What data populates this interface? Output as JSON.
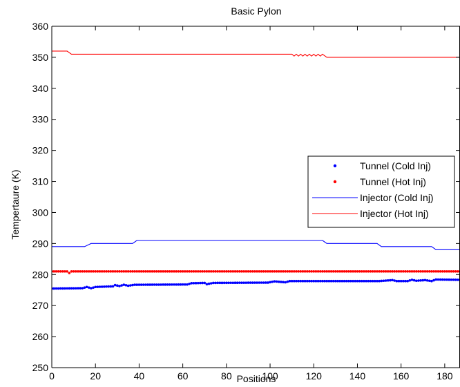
{
  "chart_data": {
    "type": "line",
    "title": "Basic Pylon",
    "xlabel": "Positions",
    "ylabel": "Tempertaure (K)",
    "xlim": [
      0,
      187
    ],
    "ylim": [
      250,
      360
    ],
    "xticks": [
      "0",
      "20",
      "40",
      "60",
      "80",
      "100",
      "120",
      "140",
      "160",
      "180"
    ],
    "yticks": [
      "250",
      "260",
      "270",
      "280",
      "290",
      "300",
      "310",
      "320",
      "330",
      "340",
      "350",
      "360"
    ],
    "grid": false,
    "legend_position": "right",
    "series": [
      {
        "name": "Tunnel (Cold Inj)",
        "style": "dots",
        "color": "#0000ff",
        "points": [
          [
            0,
            275.5
          ],
          [
            14,
            275.6
          ],
          [
            16,
            276.0
          ],
          [
            18,
            275.6
          ],
          [
            20,
            276.0
          ],
          [
            28,
            276.2
          ],
          [
            29,
            276.6
          ],
          [
            31,
            276.3
          ],
          [
            33,
            276.7
          ],
          [
            35,
            276.4
          ],
          [
            38,
            276.7
          ],
          [
            62,
            276.8
          ],
          [
            64,
            277.2
          ],
          [
            70,
            277.3
          ],
          [
            71,
            276.9
          ],
          [
            74,
            277.3
          ],
          [
            99,
            277.4
          ],
          [
            102,
            277.8
          ],
          [
            107,
            277.5
          ],
          [
            109,
            277.9
          ],
          [
            150,
            277.9
          ],
          [
            156,
            278.2
          ],
          [
            158,
            277.9
          ],
          [
            163,
            277.9
          ],
          [
            165,
            278.3
          ],
          [
            167,
            278.0
          ],
          [
            171,
            278.2
          ],
          [
            174,
            277.9
          ],
          [
            176,
            278.4
          ],
          [
            187,
            278.3
          ]
        ]
      },
      {
        "name": "Tunnel (Hot Inj)",
        "style": "dots",
        "color": "#ff0000",
        "points": [
          [
            0,
            281.0
          ],
          [
            7,
            281.0
          ],
          [
            8,
            280.5
          ],
          [
            9,
            281.0
          ],
          [
            187,
            281.0
          ]
        ]
      },
      {
        "name": "Injector (Cold Inj)",
        "style": "line",
        "color": "#0000ff",
        "points": [
          [
            0,
            289.0
          ],
          [
            15,
            289.0
          ],
          [
            18,
            290.0
          ],
          [
            37,
            290.0
          ],
          [
            39,
            291.0
          ],
          [
            124,
            291.0
          ],
          [
            126,
            290.0
          ],
          [
            149,
            290.0
          ],
          [
            151,
            289.0
          ],
          [
            174,
            289.0
          ],
          [
            176,
            288.0
          ],
          [
            187,
            288.0
          ]
        ]
      },
      {
        "name": "Injector (Hot Inj)",
        "style": "line",
        "color": "#ff0000",
        "points": [
          [
            0,
            352.0
          ],
          [
            7,
            352.0
          ],
          [
            9,
            351.0
          ],
          [
            110,
            351.0
          ],
          [
            111,
            350.4
          ],
          [
            112,
            351.0
          ],
          [
            113,
            350.4
          ],
          [
            114,
            351.0
          ],
          [
            115,
            350.4
          ],
          [
            116,
            351.0
          ],
          [
            117,
            350.4
          ],
          [
            118,
            351.0
          ],
          [
            119,
            350.4
          ],
          [
            120,
            351.0
          ],
          [
            121,
            350.4
          ],
          [
            122,
            351.0
          ],
          [
            123,
            350.4
          ],
          [
            124,
            351.0
          ],
          [
            126,
            350.0
          ],
          [
            187,
            350.0
          ]
        ]
      }
    ]
  }
}
